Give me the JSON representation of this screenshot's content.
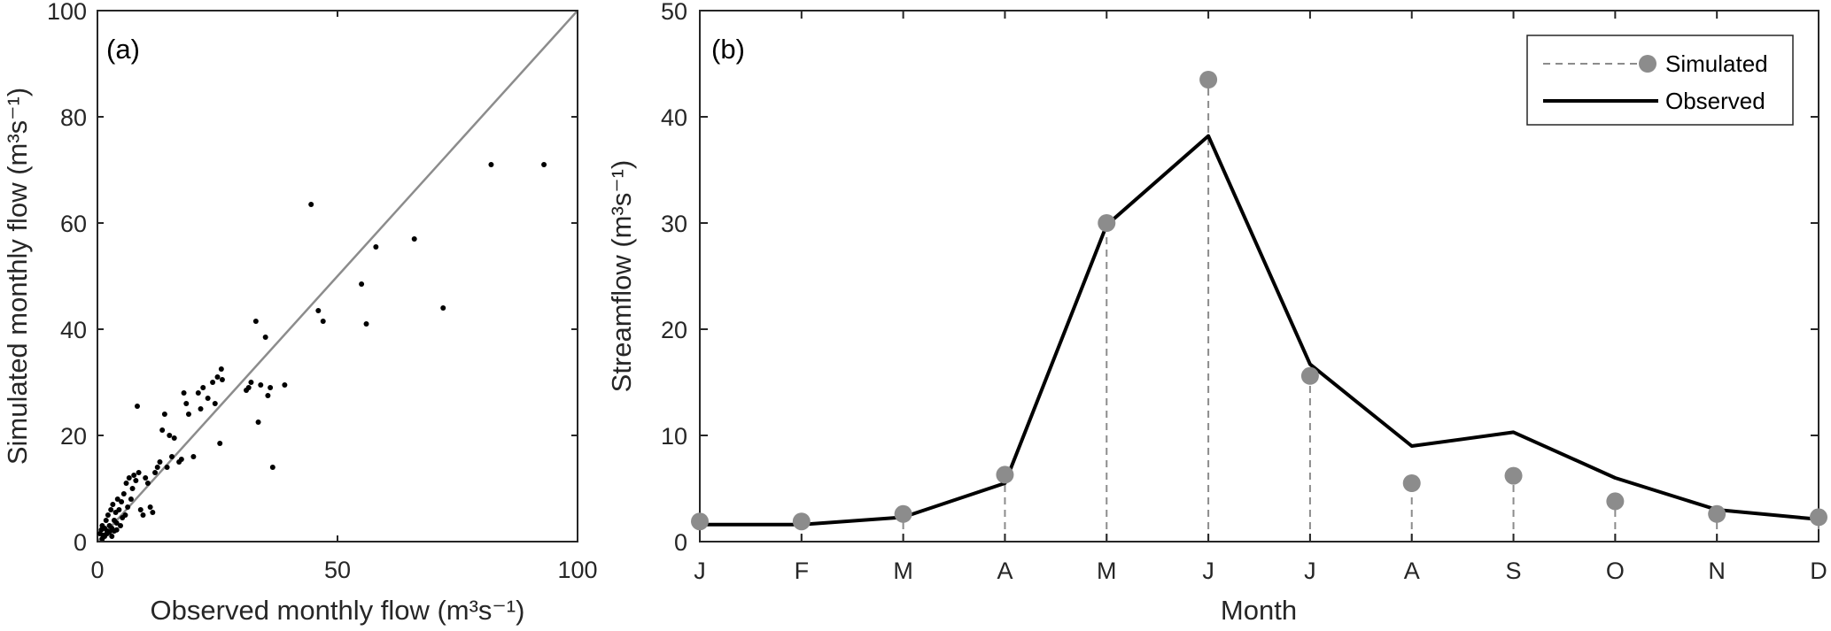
{
  "colors": {
    "axis": "#262626",
    "identity_line": "#8c8c8c",
    "scatter_point": "#000000",
    "simulated": "#8c8c8c",
    "observed": "#000000"
  },
  "chart_data": [
    {
      "type": "scatter",
      "panel_label": "(a)",
      "xlabel": "Observed monthly flow (m³s⁻¹)",
      "ylabel": "Simulated monthly flow (m³s⁻¹)",
      "xlim": [
        0,
        100
      ],
      "ylim": [
        0,
        100
      ],
      "xticks": [
        0,
        50,
        100
      ],
      "yticks": [
        0,
        20,
        40,
        60,
        80,
        100
      ],
      "grid": false,
      "reference_line": {
        "from": [
          0,
          0
        ],
        "to": [
          100,
          100
        ]
      },
      "points": [
        [
          0.5,
          1.5
        ],
        [
          0.8,
          2.2
        ],
        [
          1.0,
          3.0
        ],
        [
          1.2,
          1.2
        ],
        [
          1.5,
          2.5
        ],
        [
          1.8,
          4.0
        ],
        [
          2.0,
          2.0
        ],
        [
          2.2,
          5.0
        ],
        [
          2.5,
          3.0
        ],
        [
          2.8,
          6.0
        ],
        [
          3.0,
          2.5
        ],
        [
          3.2,
          7.0
        ],
        [
          3.5,
          4.0
        ],
        [
          3.8,
          5.5
        ],
        [
          4.0,
          3.5
        ],
        [
          4.2,
          8.0
        ],
        [
          4.5,
          6.0
        ],
        [
          4.8,
          3.0
        ],
        [
          5.0,
          7.5
        ],
        [
          5.2,
          4.5
        ],
        [
          5.5,
          9.0
        ],
        [
          5.8,
          5.0
        ],
        [
          6.0,
          11.0
        ],
        [
          6.3,
          6.5
        ],
        [
          6.6,
          12.0
        ],
        [
          7.0,
          8.0
        ],
        [
          7.3,
          10.0
        ],
        [
          7.6,
          12.5
        ],
        [
          8.0,
          11.5
        ],
        [
          8.3,
          25.5
        ],
        [
          8.6,
          13.0
        ],
        [
          9.0,
          6.0
        ],
        [
          9.5,
          5.0
        ],
        [
          10.0,
          12.0
        ],
        [
          10.5,
          11.0
        ],
        [
          11.0,
          6.5
        ],
        [
          11.5,
          5.5
        ],
        [
          12.0,
          13.0
        ],
        [
          12.5,
          14.0
        ],
        [
          13.0,
          15.0
        ],
        [
          13.5,
          21.0
        ],
        [
          14.0,
          24.0
        ],
        [
          14.5,
          14.0
        ],
        [
          15.0,
          20.0
        ],
        [
          15.5,
          16.0
        ],
        [
          16.0,
          19.5
        ],
        [
          17.0,
          15.0
        ],
        [
          17.5,
          15.5
        ],
        [
          18.0,
          28.0
        ],
        [
          18.5,
          26.0
        ],
        [
          19.0,
          24.0
        ],
        [
          20.0,
          16.0
        ],
        [
          21.0,
          28.0
        ],
        [
          21.5,
          25.0
        ],
        [
          22.0,
          29.0
        ],
        [
          23.0,
          27.0
        ],
        [
          24.0,
          30.0
        ],
        [
          24.5,
          26.0
        ],
        [
          25.0,
          31.0
        ],
        [
          25.5,
          18.5
        ],
        [
          25.8,
          32.5
        ],
        [
          26.0,
          30.5
        ],
        [
          31.0,
          28.5
        ],
        [
          31.5,
          29.0
        ],
        [
          32.0,
          30.0
        ],
        [
          33.0,
          41.5
        ],
        [
          33.5,
          22.5
        ],
        [
          34.0,
          29.5
        ],
        [
          35.0,
          38.5
        ],
        [
          35.5,
          27.5
        ],
        [
          36.0,
          29.0
        ],
        [
          36.5,
          14.0
        ],
        [
          39.0,
          29.5
        ],
        [
          44.5,
          63.5
        ],
        [
          46.0,
          43.5
        ],
        [
          47.0,
          41.5
        ],
        [
          55.0,
          48.5
        ],
        [
          56.0,
          41.0
        ],
        [
          58.0,
          55.5
        ],
        [
          66.0,
          57.0
        ],
        [
          72.0,
          44.0
        ],
        [
          82.0,
          71.0
        ],
        [
          93.0,
          71.0
        ],
        [
          1.0,
          0.5
        ],
        [
          1.5,
          1.0
        ],
        [
          2.0,
          1.5
        ],
        [
          2.5,
          1.8
        ],
        [
          3.0,
          1.0
        ],
        [
          3.5,
          2.0
        ],
        [
          4.0,
          2.2
        ]
      ]
    },
    {
      "type": "line",
      "panel_label": "(b)",
      "xlabel": "Month",
      "ylabel": "Streamflow (m³s⁻¹)",
      "categories": [
        "J",
        "F",
        "M",
        "A",
        "M",
        "J",
        "J",
        "A",
        "S",
        "O",
        "N",
        "D"
      ],
      "ylim": [
        0,
        50
      ],
      "yticks": [
        0,
        10,
        20,
        30,
        40,
        50
      ],
      "grid": false,
      "legend": "top-right",
      "series": [
        {
          "name": "Simulated",
          "style": "dashed-stem-with-markers",
          "values": [
            1.9,
            1.9,
            2.6,
            6.3,
            30.0,
            43.5,
            15.6,
            5.5,
            6.2,
            3.8,
            2.6,
            2.3
          ]
        },
        {
          "name": "Observed",
          "style": "solid-line",
          "values": [
            1.6,
            1.6,
            2.3,
            5.5,
            29.8,
            38.2,
            16.7,
            9.0,
            10.3,
            6.0,
            3.0,
            2.1
          ]
        }
      ]
    }
  ]
}
